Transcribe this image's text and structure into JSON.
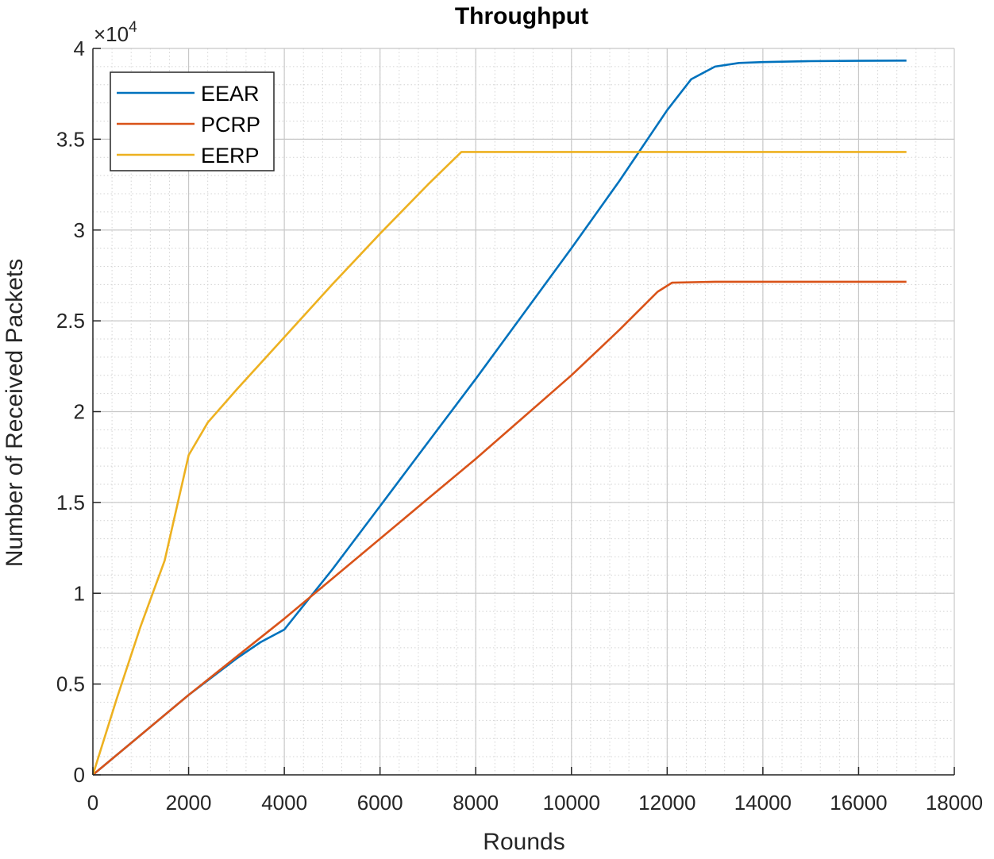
{
  "chart_data": {
    "type": "line",
    "title": "Throughput",
    "xlabel": "Rounds",
    "ylabel": "Number of Received Packets",
    "y_multiplier_label": "×10",
    "y_multiplier_exponent": "4",
    "xlim": [
      0,
      18000
    ],
    "ylim": [
      0,
      4
    ],
    "xticks": [
      0,
      2000,
      4000,
      6000,
      8000,
      10000,
      12000,
      14000,
      16000,
      18000
    ],
    "yticks": [
      0,
      0.5,
      1,
      1.5,
      2,
      2.5,
      3,
      3.5,
      4
    ],
    "xtick_labels": [
      "0",
      "2000",
      "4000",
      "6000",
      "8000",
      "10000",
      "12000",
      "14000",
      "16000",
      "18000"
    ],
    "ytick_labels": [
      "0",
      "0.5",
      "1",
      "1.5",
      "2",
      "2.5",
      "3",
      "3.5",
      "4"
    ],
    "grid": true,
    "minor_grid": true,
    "legend_position": "top-left",
    "series": [
      {
        "name": "EEAR",
        "color": "#0072bd",
        "x": [
          0,
          1000,
          2000,
          3000,
          3500,
          4000,
          5000,
          6000,
          7000,
          8000,
          9000,
          10000,
          11000,
          12000,
          12500,
          13000,
          13500,
          14000,
          15000,
          16000,
          17000
        ],
        "y": [
          0,
          0.22,
          0.44,
          0.64,
          0.73,
          0.8,
          1.13,
          1.48,
          1.83,
          2.18,
          2.54,
          2.9,
          3.27,
          3.66,
          3.83,
          3.9,
          3.92,
          3.925,
          3.93,
          3.932,
          3.933
        ]
      },
      {
        "name": "PCRP",
        "color": "#d95319",
        "x": [
          0,
          1000,
          2000,
          3000,
          4000,
          5000,
          6000,
          7000,
          8000,
          9000,
          10000,
          11000,
          11800,
          12100,
          13000,
          14000,
          15000,
          16000,
          17000
        ],
        "y": [
          0,
          0.22,
          0.44,
          0.65,
          0.86,
          1.08,
          1.3,
          1.52,
          1.74,
          1.97,
          2.2,
          2.45,
          2.66,
          2.71,
          2.715,
          2.715,
          2.715,
          2.715,
          2.715
        ]
      },
      {
        "name": "EERP",
        "color": "#edb120",
        "x": [
          0,
          500,
          1000,
          1500,
          2000,
          2400,
          3000,
          4000,
          5000,
          6000,
          7000,
          7700,
          8000,
          10000,
          12000,
          14000,
          16000,
          17000
        ],
        "y": [
          0,
          0.42,
          0.82,
          1.18,
          1.76,
          1.94,
          2.12,
          2.41,
          2.7,
          2.98,
          3.25,
          3.43,
          3.43,
          3.43,
          3.43,
          3.43,
          3.43,
          3.43
        ]
      }
    ]
  }
}
